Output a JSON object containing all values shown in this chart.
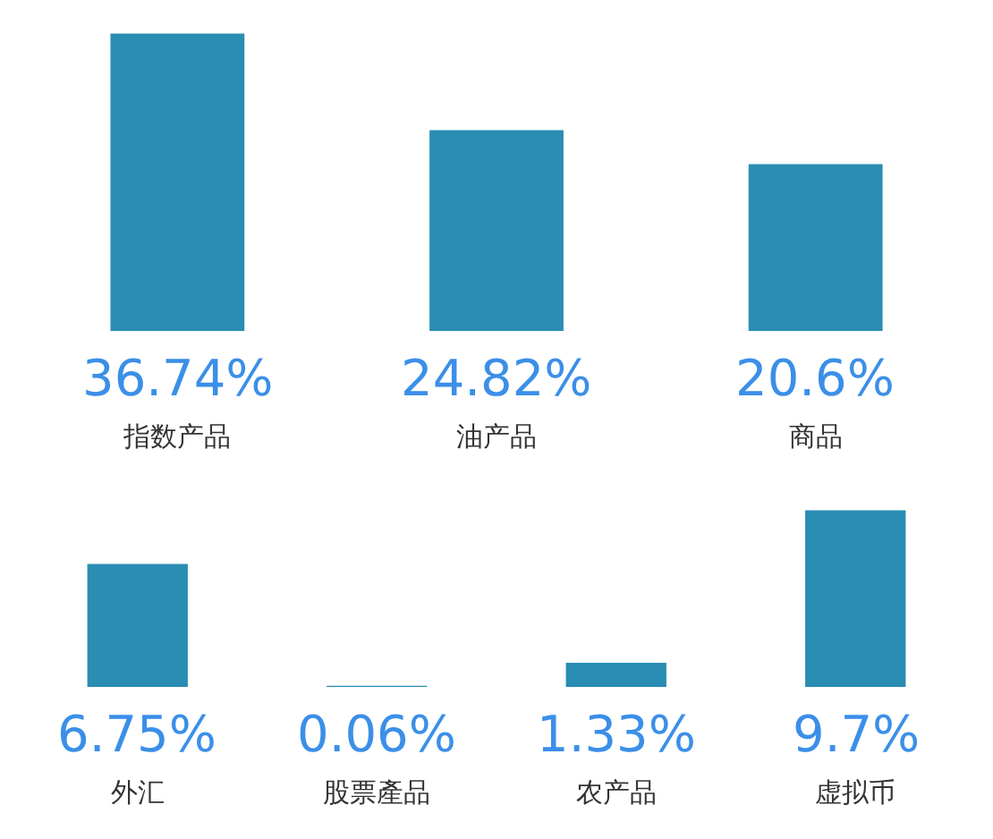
{
  "chart_data": [
    {
      "type": "bar",
      "categories": [
        "指数产品",
        "油产品",
        "商品"
      ],
      "values": [
        36.74,
        24.82,
        20.6
      ],
      "value_labels": [
        "36.74%",
        "24.82%",
        "20.6%"
      ],
      "color": "#2a8db3"
    },
    {
      "type": "bar",
      "categories": [
        "外汇",
        "股票產品",
        "农产品",
        "虚拟币"
      ],
      "values": [
        6.75,
        0.06,
        1.33,
        9.7
      ],
      "value_labels": [
        "6.75%",
        "0.06%",
        "1.33%",
        "9.7%"
      ],
      "color": "#2a8db3"
    }
  ]
}
